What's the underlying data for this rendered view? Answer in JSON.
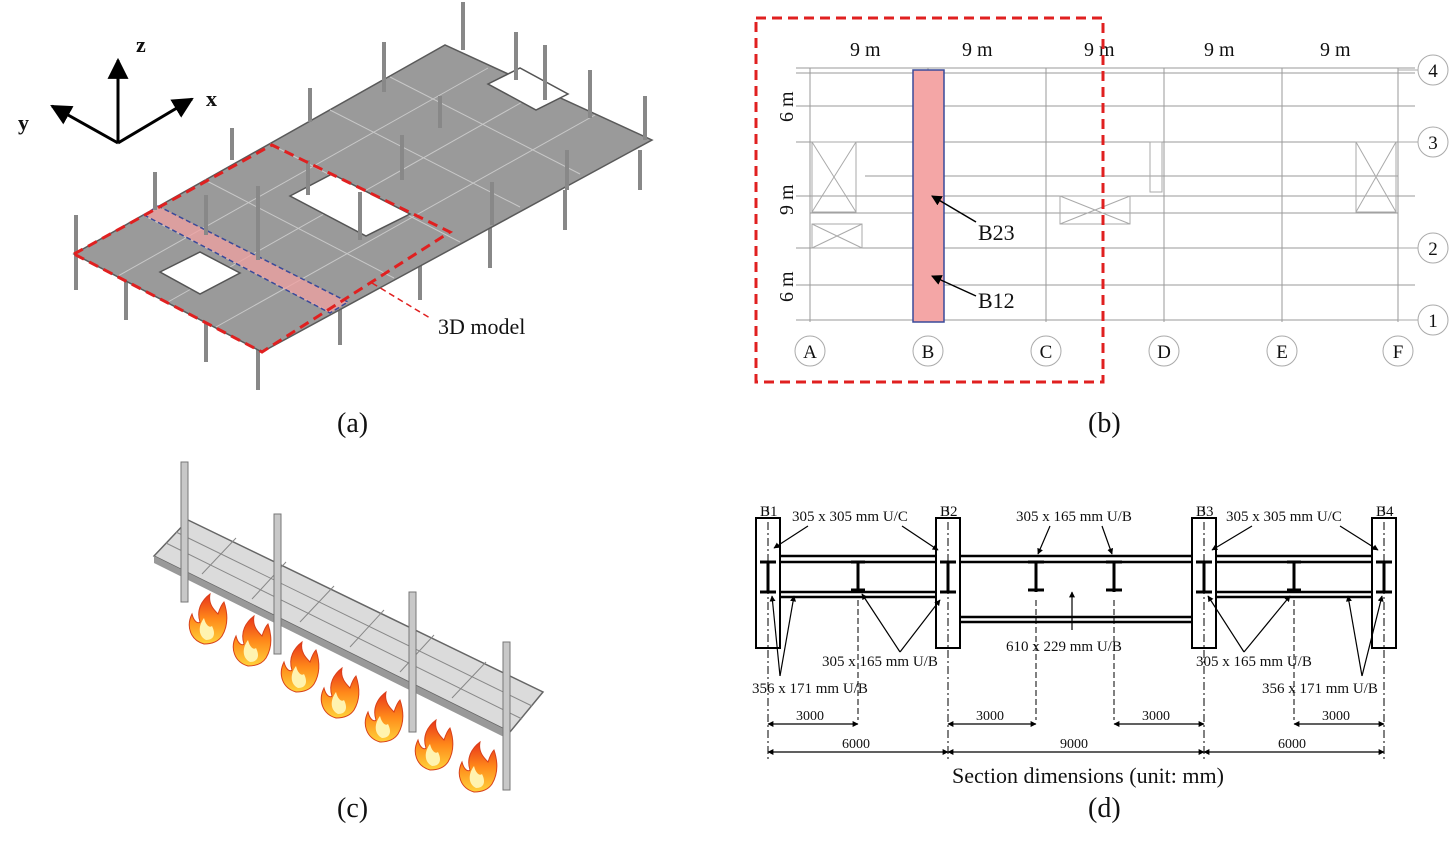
{
  "panels": {
    "a": {
      "caption": "(a)",
      "axes": {
        "z": "z",
        "y": "y",
        "x": "x"
      },
      "callout": "3D model"
    },
    "b": {
      "caption": "(b)",
      "spans": [
        "9 m",
        "9 m",
        "9 m",
        "9 m",
        "9 m"
      ],
      "bays": [
        "6 m",
        "9 m",
        "6 m"
      ],
      "grid_rows": [
        "4",
        "3",
        "2",
        "1"
      ],
      "grid_cols": [
        "A",
        "B",
        "C",
        "D",
        "E",
        "F"
      ],
      "beam_labels": [
        "B23",
        "B12"
      ]
    },
    "c": {
      "caption": "(c)"
    },
    "d": {
      "caption": "(d)",
      "column_labels": [
        "B1",
        "B2",
        "B3",
        "B4"
      ],
      "section_labels": {
        "uc_left": "305 x 305 mm U/C",
        "ub_top": "305 x 165 mm U/B",
        "uc_right": "305 x 305 mm U/C",
        "ub_left": "305 x 165 mm U/B",
        "ub_mid": "610 x 229  mm U/B",
        "ub_right": "305 x 165 mm U/B",
        "ub356_left": "356 x 171 mm U/B",
        "ub356_right": "356 x 171 mm U/B"
      },
      "dims_top": [
        "3000",
        "3000",
        "3000",
        "3000"
      ],
      "dims_bottom": [
        "6000",
        "9000",
        "6000"
      ],
      "title": "Section dimensions (unit: mm)"
    }
  },
  "colors": {
    "highlight_red": "#e02020",
    "beam_fill": "#f4a6a6",
    "beam_stroke": "#3a4a9a",
    "slab": "#9a9a9a"
  }
}
